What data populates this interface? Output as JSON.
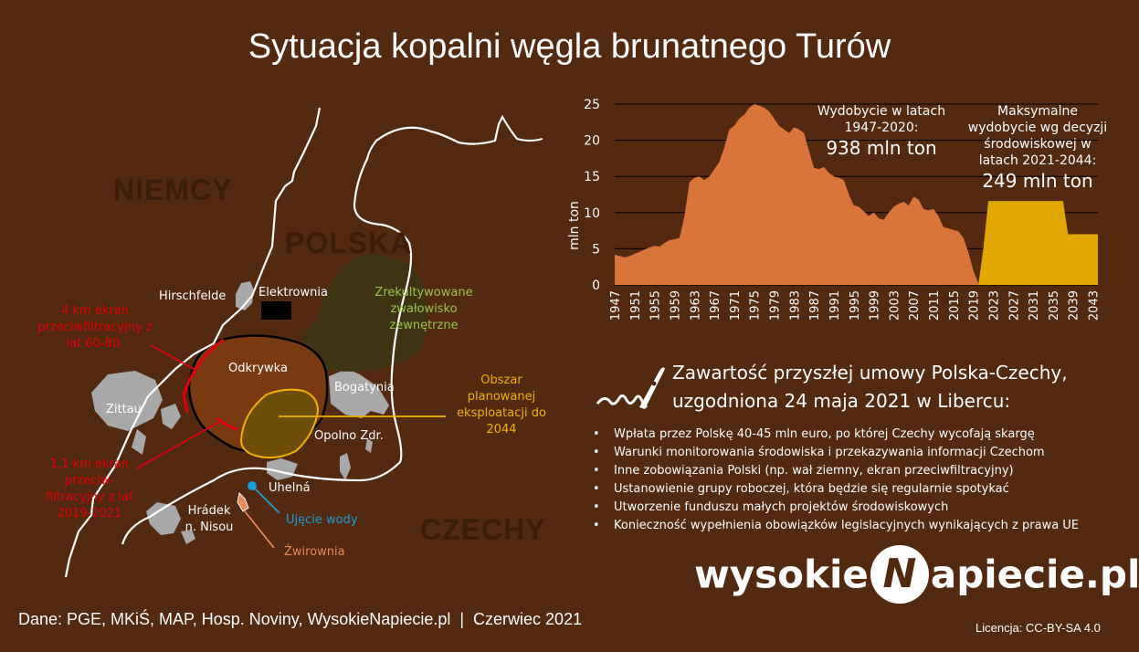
{
  "title": "Sytuacja kopalni węgla brunatnego Turów",
  "map": {
    "countries": {
      "germany": "NIEMCY",
      "poland": "POLSKA",
      "czechia": "CZECHY"
    },
    "places": {
      "hirschfelde": "Hirschfelde",
      "elektrownia": "Elektrownia",
      "odkrywka": "Odkrywka",
      "zittau": "Zittau",
      "bogatynia": "Bogatynia",
      "opolno": "Opolno Zdr.",
      "uhelna": "Uhelná",
      "hradek": "Hrádek n. Nisou",
      "ujecie": "Ujęcie wody",
      "zwirownia": "Żwirownia"
    },
    "annotations": {
      "screen_old": "4 km ekran przeciwfiltracyjny z lat 60-80.",
      "screen_new": "1,1 km ekran przeciw-filtracyjny z lat 2019-2021",
      "reclaimed": "Zrekultywowane zwałowisko zewnętrzne",
      "planned": "Obszar planowanej eksploatacji do 2044"
    },
    "colors": {
      "pit": "#7a3a10",
      "planned": "#6e4d08",
      "planned_outline": "#f2b100",
      "reclaimed": "#3f3412",
      "towns": "#a8a8a8",
      "red": "#e3000f",
      "blue": "#1c9cd8",
      "orange": "#e88a5a",
      "green": "#9bc24b"
    }
  },
  "chart_data": {
    "type": "area",
    "ylabel": "mln ton",
    "ylim": [
      0,
      25
    ],
    "yticks": [
      0,
      5,
      10,
      15,
      20,
      25
    ],
    "xlim": [
      1947,
      2044
    ],
    "xticks": [
      1947,
      1951,
      1955,
      1959,
      1963,
      1967,
      1971,
      1975,
      1979,
      1983,
      1987,
      1991,
      1995,
      1999,
      2003,
      2007,
      2011,
      2015,
      2019,
      2023,
      2027,
      2031,
      2035,
      2039,
      2043
    ],
    "grid": true,
    "series": [
      {
        "color": "#d9743a",
        "x": [
          1947,
          1948,
          1949,
          1950,
          1951,
          1952,
          1953,
          1954,
          1955,
          1956,
          1957,
          1958,
          1959,
          1960,
          1961,
          1962,
          1963,
          1964,
          1965,
          1966,
          1967,
          1968,
          1969,
          1970,
          1971,
          1972,
          1973,
          1974,
          1975,
          1976,
          1977,
          1978,
          1979,
          1980,
          1981,
          1982,
          1983,
          1984,
          1985,
          1986,
          1987,
          1988,
          1989,
          1990,
          1991,
          1992,
          1993,
          1994,
          1995,
          1996,
          1997,
          1998,
          1999,
          2000,
          2001,
          2002,
          2003,
          2004,
          2005,
          2006,
          2007,
          2008,
          2009,
          2010,
          2011,
          2012,
          2013,
          2014,
          2015,
          2016,
          2017,
          2018,
          2019,
          2020,
          2021
        ],
        "values": [
          4.2,
          4.0,
          3.8,
          4.0,
          4.3,
          4.6,
          4.9,
          5.2,
          5.4,
          5.3,
          5.8,
          6.2,
          6.3,
          6.5,
          9.5,
          14.2,
          14.8,
          15.0,
          14.5,
          15.0,
          16.0,
          17.0,
          19.0,
          21.5,
          22.0,
          23.0,
          23.5,
          24.5,
          25.0,
          24.8,
          24.5,
          24.0,
          23.0,
          22.0,
          21.5,
          21.0,
          21.8,
          21.5,
          21.0,
          18.5,
          16.2,
          16.0,
          16.3,
          15.5,
          15.0,
          14.8,
          14.5,
          12.5,
          11.0,
          10.8,
          10.2,
          9.5,
          10.0,
          9.2,
          9.0,
          10.0,
          10.8,
          11.2,
          11.5,
          11.0,
          12.2,
          11.8,
          10.5,
          10.3,
          10.5,
          9.5,
          8.0,
          7.8,
          7.6,
          7.4,
          6.5,
          4.5,
          2.0,
          0.2,
          0.0
        ]
      },
      {
        "color": "#e0a800",
        "x": [
          2020,
          2021,
          2022,
          2037,
          2038,
          2039,
          2044
        ],
        "values": [
          0,
          5,
          11.6,
          11.6,
          7.0,
          7.0,
          7.0
        ]
      }
    ],
    "annotations": [
      {
        "text": "Wydobycie w latach 1947-2020:",
        "value": "938 mln ton"
      },
      {
        "text": "Maksymalne wydobycie wg decyzji środowiskowej w latach 2021-2044:",
        "value": "249 mln ton"
      }
    ]
  },
  "agreement": {
    "title_line1": "Zawartość przyszłej umowy Polska-Czechy,",
    "title_line2": "uzgodniona 24 maja 2021 w Libercu:",
    "icon": "pen-nib-icon",
    "items": [
      "Wpłata przez Polskę 40-45 mln euro, po której Czechy wycofają skargę",
      "Warunki monitorowania środowiska i przekazywania informacji Czechom",
      "Inne zobowiązania Polski (np. wał ziemny, ekran przeciwfiltracyjny)",
      "Ustanowienie grupy roboczej, która będzie się regularnie spotykać",
      "Utworzenie funduszu małych projektów środowiskowych",
      "Konieczność wypełnienia obowiązków legislacyjnych wynikających z prawa UE"
    ]
  },
  "logo": {
    "left": "wysokie",
    "letter": "N",
    "right": "apiecie.pl"
  },
  "source": "Dane: PGE, MKiŚ, MAP, Hosp. Noviny, WysokieNapiecie.pl  |  Czerwiec 2021",
  "license": "Licencja: CC-BY-SA 4.0"
}
